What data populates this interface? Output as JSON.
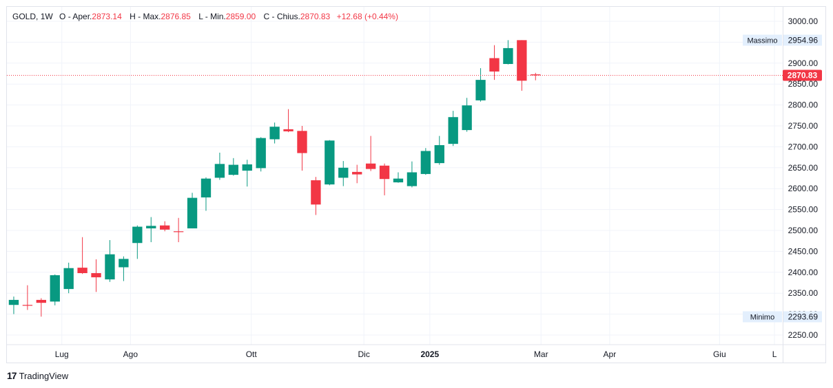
{
  "header": {
    "symbol": "GOLD",
    "interval": "1W",
    "open_label": "O - Aper.",
    "open_value": "2873.14",
    "high_label": "H - Max.",
    "high_value": "2876.85",
    "low_label": "L - Min.",
    "low_value": "2859.00",
    "close_label": "C - Chius.",
    "close_value": "2870.83",
    "change": "+12.68 (+0.44%)"
  },
  "branding": {
    "logo_text": "TradingView",
    "logo_mark": "17"
  },
  "colors": {
    "up": "#089981",
    "down": "#f23645",
    "grid": "#f0f3fa",
    "axis_text": "#131722",
    "label_bg": "#e3effd"
  },
  "chart_data": {
    "type": "candlestick",
    "ylim": [
      2225,
      3025
    ],
    "y_ticks": [
      2250,
      2300,
      2350,
      2400,
      2450,
      2500,
      2550,
      2600,
      2650,
      2700,
      2750,
      2800,
      2850,
      2900,
      2950,
      3000
    ],
    "y_tick_labels": [
      "2250.00",
      "2300.00",
      "2350.00",
      "2400.00",
      "2450.00",
      "2500.00",
      "2550.00",
      "2600.00",
      "2650.00",
      "2700.00",
      "2750.00",
      "2800.00",
      "2850.00",
      "2900.00",
      "2950.00",
      "3000.00"
    ],
    "x_labels": [
      {
        "text": "Lug",
        "week": 3.5,
        "bold": false
      },
      {
        "text": "Ago",
        "week": 8.5,
        "bold": false
      },
      {
        "text": "Ott",
        "week": 17.3,
        "bold": false
      },
      {
        "text": "Dic",
        "week": 25.5,
        "bold": false
      },
      {
        "text": "2025",
        "week": 30.3,
        "bold": true
      },
      {
        "text": "Mar",
        "week": 38.4,
        "bold": false
      },
      {
        "text": "Apr",
        "week": 43.4,
        "bold": false
      },
      {
        "text": "Giu",
        "week": 51.4,
        "bold": false
      },
      {
        "text": "L",
        "week": 55.4,
        "bold": false
      }
    ],
    "week_range": [
      -0.5,
      56
    ],
    "candles": [
      {
        "o": 2322,
        "h": 2342,
        "l": 2300,
        "c": 2334
      },
      {
        "o": 2322,
        "h": 2369,
        "l": 2310,
        "c": 2321
      },
      {
        "o": 2334,
        "h": 2338,
        "l": 2294,
        "c": 2327
      },
      {
        "o": 2330,
        "h": 2395,
        "l": 2321,
        "c": 2393
      },
      {
        "o": 2360,
        "h": 2423,
        "l": 2350,
        "c": 2410
      },
      {
        "o": 2411,
        "h": 2484,
        "l": 2396,
        "c": 2398
      },
      {
        "o": 2398,
        "h": 2431,
        "l": 2353,
        "c": 2388
      },
      {
        "o": 2383,
        "h": 2477,
        "l": 2377,
        "c": 2443
      },
      {
        "o": 2412,
        "h": 2438,
        "l": 2379,
        "c": 2432
      },
      {
        "o": 2470,
        "h": 2512,
        "l": 2432,
        "c": 2509
      },
      {
        "o": 2505,
        "h": 2532,
        "l": 2472,
        "c": 2511
      },
      {
        "o": 2512,
        "h": 2522,
        "l": 2498,
        "c": 2502
      },
      {
        "o": 2498,
        "h": 2530,
        "l": 2472,
        "c": 2497
      },
      {
        "o": 2505,
        "h": 2590,
        "l": 2505,
        "c": 2578
      },
      {
        "o": 2579,
        "h": 2627,
        "l": 2547,
        "c": 2624
      },
      {
        "o": 2626,
        "h": 2686,
        "l": 2621,
        "c": 2659
      },
      {
        "o": 2633,
        "h": 2673,
        "l": 2631,
        "c": 2657
      },
      {
        "o": 2643,
        "h": 2669,
        "l": 2605,
        "c": 2658
      },
      {
        "o": 2649,
        "h": 2723,
        "l": 2641,
        "c": 2721
      },
      {
        "o": 2718,
        "h": 2758,
        "l": 2708,
        "c": 2748
      },
      {
        "o": 2742,
        "h": 2790,
        "l": 2735,
        "c": 2737
      },
      {
        "o": 2738,
        "h": 2750,
        "l": 2643,
        "c": 2685
      },
      {
        "o": 2620,
        "h": 2628,
        "l": 2537,
        "c": 2562
      },
      {
        "o": 2610,
        "h": 2716,
        "l": 2608,
        "c": 2715
      },
      {
        "o": 2626,
        "h": 2666,
        "l": 2606,
        "c": 2650
      },
      {
        "o": 2640,
        "h": 2657,
        "l": 2613,
        "c": 2634
      },
      {
        "o": 2660,
        "h": 2726,
        "l": 2642,
        "c": 2647
      },
      {
        "o": 2655,
        "h": 2660,
        "l": 2584,
        "c": 2623
      },
      {
        "o": 2615,
        "h": 2639,
        "l": 2614,
        "c": 2624
      },
      {
        "o": 2606,
        "h": 2665,
        "l": 2603,
        "c": 2639
      },
      {
        "o": 2635,
        "h": 2697,
        "l": 2633,
        "c": 2690
      },
      {
        "o": 2661,
        "h": 2726,
        "l": 2657,
        "c": 2704
      },
      {
        "o": 2707,
        "h": 2786,
        "l": 2702,
        "c": 2771
      },
      {
        "o": 2740,
        "h": 2817,
        "l": 2736,
        "c": 2799
      },
      {
        "o": 2811,
        "h": 2888,
        "l": 2808,
        "c": 2860
      },
      {
        "o": 2912,
        "h": 2943,
        "l": 2860,
        "c": 2880
      },
      {
        "o": 2898,
        "h": 2955,
        "l": 2897,
        "c": 2936
      },
      {
        "o": 2955,
        "h": 2955,
        "l": 2834,
        "c": 2858
      },
      {
        "o": 2873.14,
        "h": 2876.85,
        "l": 2859,
        "c": 2870.83
      }
    ],
    "last_price": 2870.83,
    "last_price_label": "2870.83",
    "max_label": "Massimo",
    "max_value": 2954.96,
    "max_value_label": "2954.96",
    "min_label": "Minimo",
    "min_value": 2293.69,
    "min_value_label": "2293.69",
    "grid": true
  }
}
